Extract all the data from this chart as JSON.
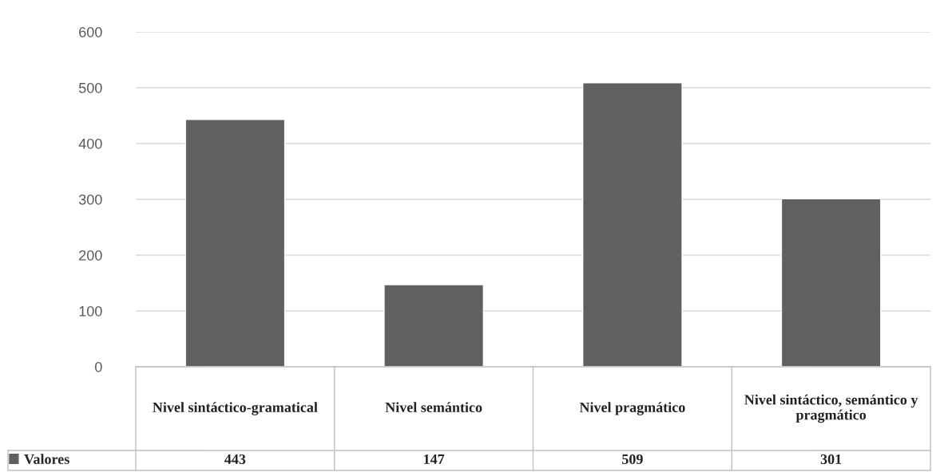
{
  "chart_data": {
    "type": "bar",
    "categories": [
      "Nivel sintáctico-gramatical",
      "Nivel semántico",
      "Nivel pragmático",
      "Nivel sintáctico, semántico y pragmático"
    ],
    "series": [
      {
        "name": "Valores",
        "color": "#606060",
        "values": [
          443,
          147,
          509,
          301
        ]
      }
    ],
    "ylim": [
      0,
      600
    ],
    "yticks": [
      0,
      100,
      200,
      300,
      400,
      500,
      600
    ],
    "grid": "y",
    "legend": "bottom",
    "data_labels": true
  }
}
